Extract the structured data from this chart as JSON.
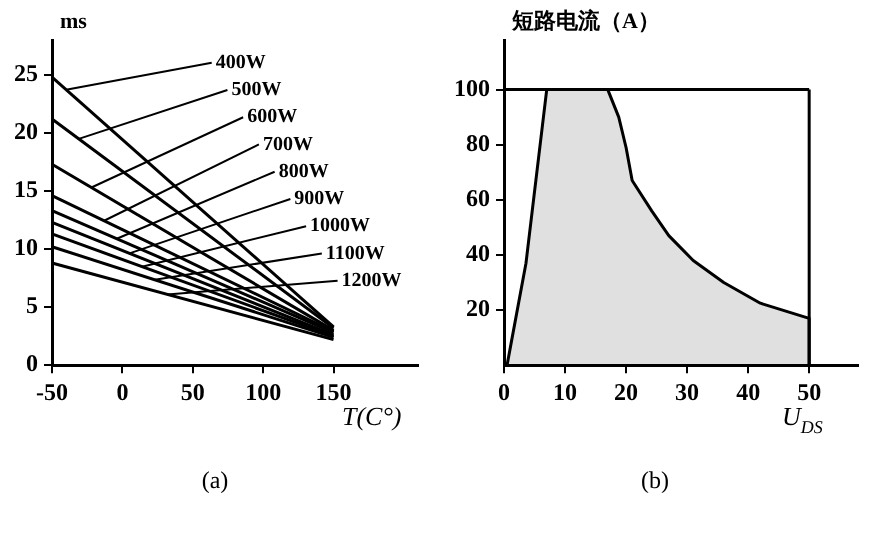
{
  "chart_data": [
    {
      "type": "line",
      "xlabel": "T(C°)",
      "ylabel": "ms",
      "annotations": [
        "(a)"
      ],
      "xlim": [
        -50,
        210
      ],
      "ylim": [
        0,
        28
      ],
      "xticks": [
        -50,
        0,
        50,
        100,
        150
      ],
      "yticks": [
        0,
        5,
        10,
        15,
        20,
        25
      ],
      "grid": false,
      "legend": false,
      "marker": "none",
      "x": [
        -50,
        150
      ],
      "series": [
        {
          "name": "400W",
          "color": "#000000",
          "values": [
            24.8,
            3.3
          ]
        },
        {
          "name": "500W",
          "color": "#000000",
          "values": [
            21.2,
            3.2
          ]
        },
        {
          "name": "600W",
          "color": "#000000",
          "values": [
            17.3,
            3.0
          ]
        },
        {
          "name": "700W",
          "color": "#000000",
          "values": [
            14.6,
            2.9
          ]
        },
        {
          "name": "800W",
          "color": "#000000",
          "values": [
            13.3,
            2.8
          ]
        },
        {
          "name": "900W",
          "color": "#000000",
          "values": [
            12.3,
            2.6
          ]
        },
        {
          "name": "1000W",
          "color": "#000000",
          "values": [
            11.3,
            2.5
          ]
        },
        {
          "name": "1100W",
          "color": "#000000",
          "values": [
            10.2,
            2.4
          ]
        },
        {
          "name": "1200W",
          "color": "#000000",
          "values": [
            8.8,
            2.2
          ]
        }
      ]
    },
    {
      "type": "area",
      "xlabel": "U$_{DS}$",
      "ylabel": "短路电流（A）",
      "annotations": [
        "(b)"
      ],
      "x": [
        0.5,
        3.6,
        7,
        17,
        18.8,
        20,
        21,
        24.2,
        27,
        31,
        36,
        42,
        50,
        50
      ],
      "values": [
        0,
        37,
        100,
        100,
        90,
        79,
        67,
        56,
        47,
        38,
        30,
        22.5,
        17,
        0
      ],
      "color": "#000000",
      "xlim": [
        0,
        58
      ],
      "ylim": [
        0,
        118
      ],
      "xticks": [
        0,
        10,
        20,
        30,
        40,
        50
      ],
      "yticks": [
        20,
        40,
        60,
        80,
        100
      ],
      "ref_lines": [
        {
          "axis": "y",
          "value": 100
        },
        {
          "axis": "x",
          "value": 50
        }
      ],
      "grid": false,
      "legend": false
    }
  ]
}
